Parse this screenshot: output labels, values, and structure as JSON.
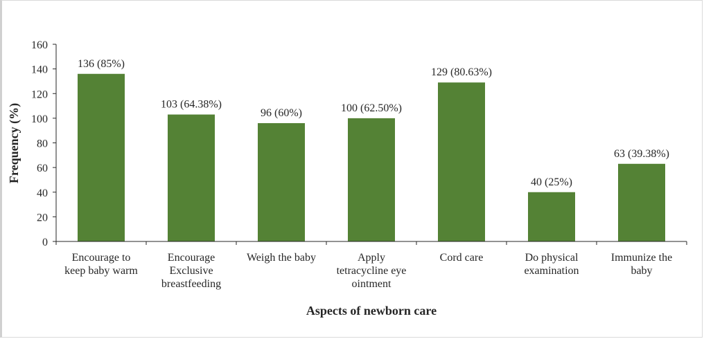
{
  "chart_data": {
    "type": "bar",
    "title": "",
    "xlabel": "Aspects of newborn care",
    "ylabel": "Frequency (%)",
    "ylim": [
      0,
      160
    ],
    "yticks": [
      0,
      20,
      40,
      60,
      80,
      100,
      120,
      140,
      160
    ],
    "grid": false,
    "categories": [
      [
        "Encourage to",
        "keep baby warm"
      ],
      [
        "Encourage",
        "Exclusive",
        "breastfeeding"
      ],
      [
        "Weigh the baby"
      ],
      [
        "Apply",
        "tetracycline eye",
        "ointment"
      ],
      [
        "Cord care"
      ],
      [
        "Do physical",
        "examination"
      ],
      [
        "Immunize the",
        "baby"
      ]
    ],
    "values": [
      136,
      103,
      96,
      100,
      129,
      40,
      63
    ],
    "data_labels": [
      "136 (85%)",
      "103 (64.38%)",
      "96 (60%)",
      "100 (62.50%)",
      "129 (80.63%)",
      "40 (25%)",
      "63 (39.38%)"
    ],
    "colors": {
      "bar": "#548235",
      "axis": "#262626"
    }
  }
}
